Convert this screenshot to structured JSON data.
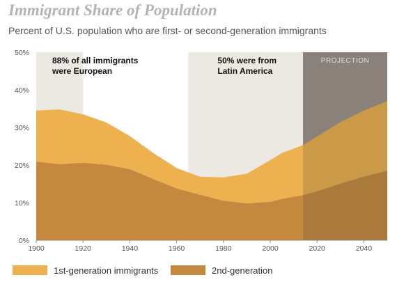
{
  "header": {
    "title": "Immigrant Share of Population",
    "subtitle": "Percent of U.S. population who are first- or second-generation immigrants"
  },
  "chart_data": {
    "type": "area",
    "stacked": true,
    "x": [
      1900,
      1910,
      1920,
      1930,
      1940,
      1950,
      1960,
      1970,
      1980,
      1990,
      2000,
      2005,
      2014,
      2020,
      2030,
      2040,
      2050
    ],
    "series": [
      {
        "name": "1st-generation immigrants",
        "color": "#edb24f",
        "values": [
          13.6,
          14.6,
          12.9,
          11.2,
          8.8,
          6.9,
          5.4,
          4.8,
          6.2,
          7.9,
          11.1,
          12.2,
          13.3,
          14.6,
          16.4,
          17.6,
          18.5
        ]
      },
      {
        "name": "2nd-generation",
        "color": "#c4893e",
        "values": [
          20.9,
          20.2,
          20.6,
          20.1,
          18.9,
          16.3,
          13.8,
          12.1,
          10.5,
          9.8,
          10.2,
          11.0,
          12.0,
          13.0,
          15.0,
          16.9,
          18.5
        ]
      }
    ],
    "xlim": [
      1900,
      2050
    ],
    "ylim": [
      0,
      50
    ],
    "x_ticks": [
      "1900",
      "1920",
      "1940",
      "1960",
      "1980",
      "2000",
      "2020",
      "2040"
    ],
    "y_ticks": [
      "0%",
      "10%",
      "20%",
      "30%",
      "40%",
      "50%"
    ],
    "shaded_periods": [
      {
        "start": 1900,
        "end": 1920,
        "label_lines": [
          "88% of all immigrants",
          "were European"
        ]
      },
      {
        "start": 1965,
        "end": 2014,
        "label_lines": [
          "50% were from",
          "Latin America"
        ]
      }
    ],
    "projection": {
      "start": 2014,
      "end": 2050,
      "label": "PROJECTION"
    },
    "legend_position": "bottom",
    "grid": false
  }
}
